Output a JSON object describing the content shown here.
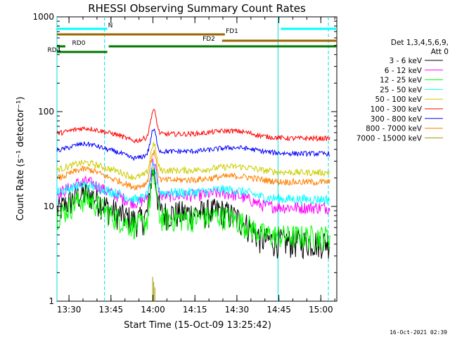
{
  "chart_data": {
    "type": "line",
    "title": "RHESSI Observing Summary Count Rates",
    "xlabel": "Start Time (15-Oct-09 13:25:42)",
    "ylabel": "Count Rate (s⁻¹ detector⁻¹)",
    "yscale": "log",
    "ylim": [
      1,
      1000
    ],
    "xlim_minutes": [
      0,
      100
    ],
    "x_tick_labels": [
      "13:30",
      "13:45",
      "14:00",
      "14:15",
      "14:30",
      "14:45",
      "15:00"
    ],
    "x_tick_minutes": [
      4.3,
      19.3,
      34.3,
      49.3,
      64.3,
      79.3,
      94.3
    ],
    "y_tick_labels": [
      "1",
      "10",
      "100",
      "1000"
    ],
    "y_tick_values": [
      1,
      10,
      100,
      1000
    ],
    "legend_header": [
      "Det 1,3,4,5,6,9,",
      "Att 0"
    ],
    "legend_position": "right",
    "series": [
      {
        "name": "3 - 6 keV",
        "color": "#000000",
        "base": 8.5,
        "bump": 1.6,
        "peak": 24,
        "late_drop": 0.5,
        "noise": 0.35
      },
      {
        "name": "6 - 12 keV",
        "color": "#ff00ff",
        "base": 13,
        "bump": 1.4,
        "peak": 30,
        "late_drop": 0.75,
        "noise": 0.15
      },
      {
        "name": "12 - 25 keV",
        "color": "#00ff00",
        "base": 7.5,
        "bump": 1.6,
        "peak": 20,
        "late_drop": 0.65,
        "noise": 0.3
      },
      {
        "name": "25 - 50 keV",
        "color": "#00ffff",
        "base": 14,
        "bump": 1.2,
        "peak": 27,
        "late_drop": 0.85,
        "noise": 0.12
      },
      {
        "name": "50 - 100 keV",
        "color": "#cccc00",
        "base": 24,
        "bump": 1.2,
        "peak": 46,
        "late_drop": 0.95,
        "noise": 0.08
      },
      {
        "name": "100 - 300 keV",
        "color": "#ff0000",
        "base": 58,
        "bump": 1.15,
        "peak": 105,
        "late_drop": 0.9,
        "noise": 0.06
      },
      {
        "name": "300 - 800 keV",
        "color": "#0000ff",
        "base": 38,
        "bump": 1.2,
        "peak": 65,
        "late_drop": 0.95,
        "noise": 0.06
      },
      {
        "name": "800 - 7000 keV",
        "color": "#ff8000",
        "base": 19,
        "bump": 1.3,
        "peak": 38,
        "late_drop": 0.95,
        "noise": 0.08
      },
      {
        "name": "7000 - 15000 keV",
        "color": "#999900",
        "base": 0,
        "bump": 0,
        "peak": 1.8,
        "late_drop": 1,
        "noise": 0
      }
    ],
    "flag_bars": [
      {
        "label": "N",
        "color": "#00ffff",
        "segments": [
          [
            0,
            18
          ],
          [
            80,
            100
          ]
        ]
      },
      {
        "label": "FD1",
        "color": "#996600",
        "segments": [
          [
            0,
            60
          ]
        ]
      },
      {
        "label": "FD2",
        "color": "#996600",
        "segments": [
          [
            59,
            100
          ]
        ]
      },
      {
        "label": "RD0",
        "color": "#007700",
        "segments": [
          [
            0,
            3
          ],
          [
            18.5,
            100
          ]
        ]
      },
      {
        "label": "RD4",
        "color": "#007700",
        "segments": [
          [
            0,
            18
          ]
        ]
      }
    ],
    "vertical_markers_minutes": [
      0,
      17,
      79,
      97
    ],
    "grid": false
  },
  "footer": {
    "timestamp": "16-Oct-2021 02:39"
  }
}
